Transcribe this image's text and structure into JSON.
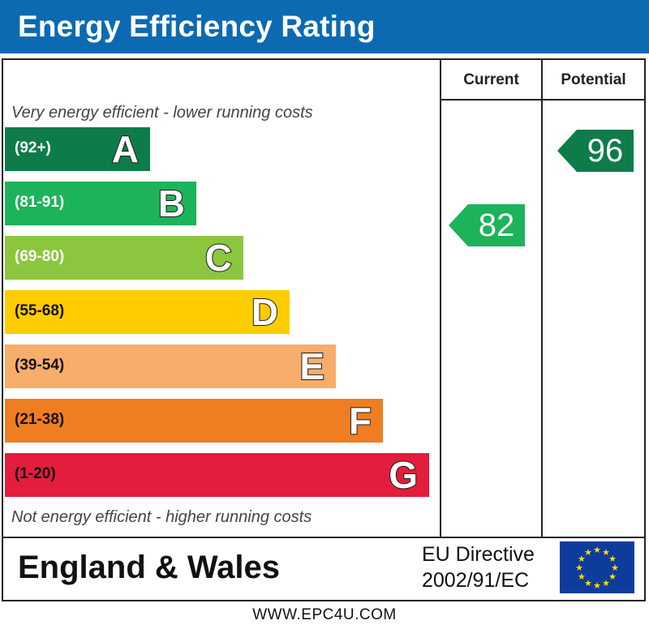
{
  "title": "Energy Efficiency Rating",
  "columns": {
    "current": "Current",
    "potential": "Potential"
  },
  "scale_top_note": "Very energy efficient - lower running costs",
  "scale_bottom_note": "Not energy efficient - higher running costs",
  "footer": {
    "country": "England & Wales",
    "directive_line1": "EU Directive",
    "directive_line2": "2002/91/EC",
    "url": "WWW.EPC4U.COM"
  },
  "chart_data": {
    "type": "bar",
    "title": "Energy Efficiency Rating",
    "categories": [
      "A",
      "B",
      "C",
      "D",
      "E",
      "F",
      "G"
    ],
    "bands": [
      {
        "letter": "A",
        "range": "(92+)",
        "color": "#0e7c4a"
      },
      {
        "letter": "B",
        "range": "(81-91)",
        "color": "#1db35a"
      },
      {
        "letter": "C",
        "range": "(69-80)",
        "color": "#8cc63f"
      },
      {
        "letter": "D",
        "range": "(55-68)",
        "color": "#ffcc00"
      },
      {
        "letter": "E",
        "range": "(39-54)",
        "color": "#f7ad6b"
      },
      {
        "letter": "F",
        "range": "(21-38)",
        "color": "#ef7d22"
      },
      {
        "letter": "G",
        "range": "(1-20)",
        "color": "#e31d3c"
      }
    ],
    "current": {
      "value": 82,
      "band": "B",
      "color": "#1db35a"
    },
    "potential": {
      "value": 96,
      "band": "A",
      "color": "#0e7c4a"
    }
  },
  "eu_flag_color": "#0d3c9c",
  "eu_star_color": "#ffdd00",
  "title_bar_color": "#0b6ab2"
}
